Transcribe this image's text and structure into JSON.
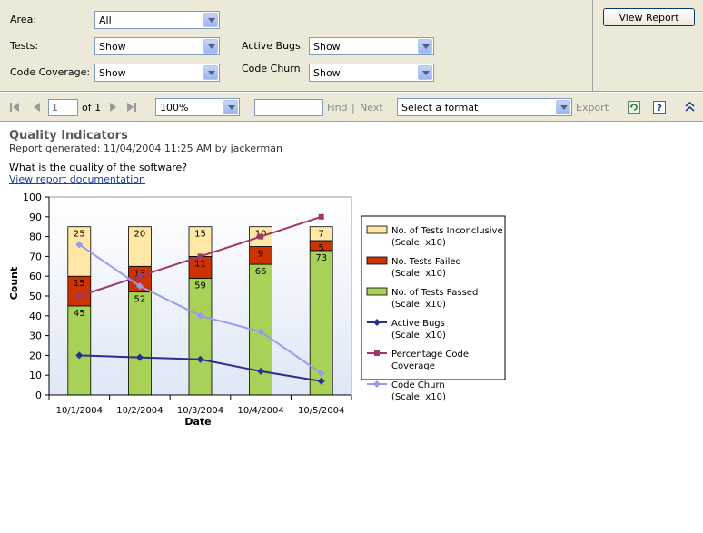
{
  "params": {
    "area": {
      "label": "Area:",
      "value": "All"
    },
    "tests": {
      "label": "Tests:",
      "value": "Show"
    },
    "code_coverage": {
      "label": "Code Coverage:",
      "value": "Show"
    },
    "active_bugs": {
      "label": "Active Bugs:",
      "value": "Show"
    },
    "code_churn": {
      "label": "Code Churn:",
      "value": "Show"
    },
    "view_report_label": "View Report"
  },
  "toolbar": {
    "page_number": "1",
    "page_of": "of 1",
    "zoom": "100%",
    "find_label": "Find",
    "separator": "|",
    "next_label": "Next",
    "format_placeholder": "Select a format",
    "export_label": "Export",
    "icons": [
      "first-page-icon",
      "previous-page-icon",
      "next-page-icon",
      "last-page-icon",
      "refresh-icon",
      "help-icon",
      "collapse-icon"
    ]
  },
  "report": {
    "title": "Quality Indicators",
    "generated": "Report generated:  11/04/2004 11:25 AM by jackerman",
    "question": "What is the quality of the software?",
    "doc_link": "View report documentation"
  },
  "colors": {
    "passed": "#a9d158",
    "failed": "#cc3300",
    "inconclusive": "#ffe8a6",
    "active_bugs": "#2b2f8e",
    "coverage": "#9e3868",
    "churn": "#9999ee"
  },
  "chart_data": {
    "type": "bar",
    "stacked": true,
    "xlabel": "Date",
    "ylabel": "Count",
    "ylim": [
      0,
      100
    ],
    "yticks": [
      0,
      10,
      20,
      30,
      40,
      50,
      60,
      70,
      80,
      90,
      100
    ],
    "categories": [
      "10/1/2004",
      "10/2/2004",
      "10/3/2004",
      "10/4/2004",
      "10/5/2004"
    ],
    "bar_series": [
      {
        "name": "No. of Tests Passed (Scale: x10)",
        "values": [
          45,
          52,
          59,
          66,
          73
        ],
        "color": "#a9d158"
      },
      {
        "name": "No. Tests Failed (Scale: x10)",
        "values": [
          15,
          13,
          11,
          9,
          5
        ],
        "color": "#cc3300"
      },
      {
        "name": "No. of Tests Inconclusive (Scale: x10)",
        "values": [
          25,
          20,
          15,
          10,
          7
        ],
        "color": "#ffe8a6"
      }
    ],
    "line_series": [
      {
        "name": "Active Bugs (Scale: x10)",
        "values": [
          20,
          19,
          18,
          12,
          7
        ],
        "color": "#2b2f8e",
        "marker": "diamond"
      },
      {
        "name": "Percentage Code Coverage",
        "values": [
          50,
          60,
          70,
          80,
          90
        ],
        "color": "#9e3868",
        "marker": "square"
      },
      {
        "name": "Code Churn (Scale: x10)",
        "values": [
          76,
          55,
          40,
          32,
          11
        ],
        "color": "#9999ee",
        "marker": "diamond"
      }
    ],
    "legend_position": "right",
    "grid": false
  }
}
